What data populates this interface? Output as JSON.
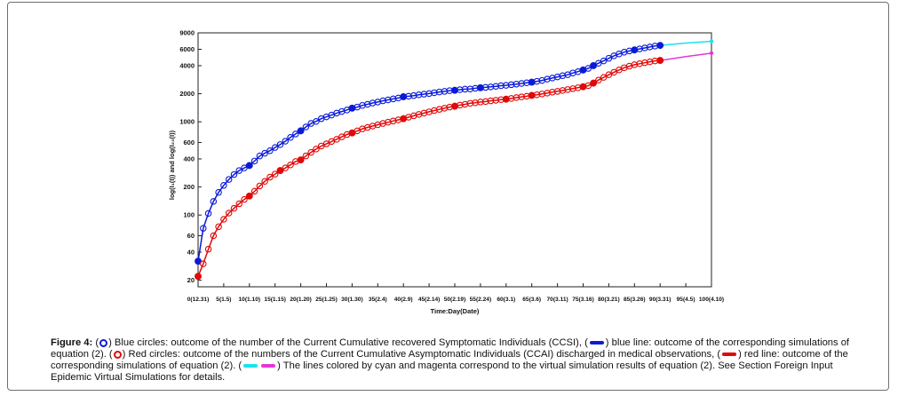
{
  "chart_data": {
    "type": "line",
    "xlabel": "Time:Day(Date)",
    "ylabel": "log(I₁(I)) and log(I₂₃(I))",
    "xlim": [
      0,
      100
    ],
    "ylim": [
      17,
      9000
    ],
    "yscale": "log",
    "grid": false,
    "legend": "none",
    "x_ticks": [
      0,
      5,
      10,
      15,
      20,
      25,
      30,
      35,
      40,
      45,
      50,
      55,
      60,
      65,
      70,
      75,
      80,
      85,
      90,
      95,
      100
    ],
    "x_tick_labels": [
      "0(12.31)",
      "5(1.5)",
      "10(1.10)",
      "15(1.15)",
      "20(1.20)",
      "25(1.25)",
      "30(1.30)",
      "35(2.4)",
      "40(2.9)",
      "45(2.14)",
      "50(2.19)",
      "55(2.24)",
      "60(3.1)",
      "65(3.6)",
      "70(3.11)",
      "75(3.16)",
      "80(3.21)",
      "85(3.26)",
      "90(3.31)",
      "95(4.5)",
      "100(4.10)"
    ],
    "y_ticks": [
      20,
      40,
      60,
      100,
      200,
      400,
      600,
      1000,
      2000,
      4000,
      6000,
      9000
    ],
    "y_tick_labels": [
      "20",
      "40",
      "60",
      "100",
      "200",
      "400",
      "600",
      "1000",
      "2000",
      "4000",
      "6000",
      "9000"
    ],
    "series": [
      {
        "color": "#0a1ad8",
        "marker": "circle",
        "x": [
          0,
          1,
          2,
          3,
          4,
          5,
          6,
          7,
          8,
          9,
          10,
          11,
          12,
          13,
          14,
          15,
          16,
          17,
          18,
          19,
          20,
          21,
          22,
          23,
          24,
          25,
          26,
          27,
          28,
          29,
          30,
          31,
          32,
          33,
          34,
          35,
          36,
          37,
          38,
          39,
          40,
          41,
          42,
          43,
          44,
          45,
          46,
          47,
          48,
          49,
          50,
          51,
          52,
          53,
          54,
          55,
          56,
          57,
          58,
          59,
          60,
          61,
          62,
          63,
          64,
          65,
          66,
          67,
          68,
          69,
          70,
          71,
          72,
          73,
          74,
          75,
          76,
          77,
          78,
          79,
          80,
          81,
          82,
          83,
          84,
          85,
          86,
          87,
          88,
          89,
          90
        ],
        "y": [
          32,
          72,
          104,
          140,
          175,
          208,
          241,
          272,
          300,
          320,
          340,
          380,
          430,
          460,
          490,
          530,
          570,
          620,
          680,
          740,
          800,
          880,
          960,
          1010,
          1080,
          1130,
          1180,
          1240,
          1290,
          1340,
          1400,
          1440,
          1500,
          1540,
          1590,
          1630,
          1680,
          1720,
          1760,
          1800,
          1860,
          1880,
          1910,
          1950,
          1980,
          2010,
          2050,
          2090,
          2120,
          2160,
          2180,
          2210,
          2240,
          2250,
          2290,
          2320,
          2340,
          2370,
          2400,
          2440,
          2460,
          2500,
          2540,
          2580,
          2620,
          2660,
          2720,
          2780,
          2870,
          2950,
          3030,
          3120,
          3200,
          3340,
          3450,
          3600,
          3740,
          4000,
          4250,
          4500,
          4800,
          5100,
          5350,
          5580,
          5750,
          5900,
          6050,
          6200,
          6350,
          6500,
          6600
        ],
        "filled_x": [
          0,
          10,
          20,
          30,
          40,
          50,
          55,
          65,
          75,
          77,
          85,
          90
        ]
      },
      {
        "color": "#e00808",
        "marker": "circle",
        "x": [
          0,
          1,
          2,
          3,
          4,
          5,
          6,
          7,
          8,
          9,
          10,
          11,
          12,
          13,
          14,
          15,
          16,
          17,
          18,
          19,
          20,
          21,
          22,
          23,
          24,
          25,
          26,
          27,
          28,
          29,
          30,
          31,
          32,
          33,
          34,
          35,
          36,
          37,
          38,
          39,
          40,
          41,
          42,
          43,
          44,
          45,
          46,
          47,
          48,
          49,
          50,
          51,
          52,
          53,
          54,
          55,
          56,
          57,
          58,
          59,
          60,
          61,
          62,
          63,
          64,
          65,
          66,
          67,
          68,
          69,
          70,
          71,
          72,
          73,
          74,
          75,
          76,
          77,
          78,
          79,
          80,
          81,
          82,
          83,
          84,
          85,
          86,
          87,
          88,
          89,
          90
        ],
        "y": [
          22,
          30,
          43,
          60,
          75,
          90,
          105,
          118,
          132,
          147,
          160,
          180,
          205,
          230,
          255,
          275,
          300,
          320,
          345,
          375,
          390,
          430,
          470,
          510,
          550,
          580,
          615,
          650,
          690,
          730,
          760,
          800,
          840,
          870,
          900,
          930,
          960,
          990,
          1020,
          1050,
          1080,
          1120,
          1160,
          1200,
          1240,
          1280,
          1320,
          1360,
          1400,
          1440,
          1470,
          1510,
          1540,
          1580,
          1600,
          1630,
          1650,
          1680,
          1700,
          1730,
          1750,
          1780,
          1820,
          1850,
          1880,
          1920,
          1950,
          1990,
          2030,
          2080,
          2120,
          2170,
          2220,
          2270,
          2320,
          2380,
          2440,
          2600,
          2800,
          3000,
          3200,
          3400,
          3600,
          3800,
          3950,
          4100,
          4200,
          4300,
          4400,
          4500,
          4550
        ],
        "filled_x": [
          0,
          10,
          16,
          20,
          30,
          40,
          50,
          60,
          65,
          75,
          77,
          90
        ]
      },
      {
        "color": "#18e3ee",
        "marker": "none",
        "x": [
          90,
          95,
          100
        ],
        "y": [
          6600,
          7000,
          7300
        ]
      },
      {
        "color": "#e636d6",
        "marker": "none",
        "x": [
          90,
          95,
          100
        ],
        "y": [
          4550,
          5000,
          5450
        ]
      }
    ]
  },
  "caption": {
    "label": "Figure 4:",
    "t1": "(",
    "t2": ") Blue circles: outcome of the number of the Current Cumulative recovered Symptomatic Individuals (CCSI), (",
    "t3": ") blue line: outcome of the corresponding simulations of equation (2). (",
    "t4": ") Red circles: outcome of the numbers of the Current Cumulative Asymptomatic Individuals (CCAI) discharged in medical observations, (",
    "t5": ") red line: outcome of the corresponding simulations of equation (2). (",
    "t6": ") The lines colored by cyan and magenta correspond to the virtual simulation results of equation (2). See Section Foreign Input Epidemic Virtual Simulations for details.",
    "colors": {
      "blue": "#0a1ad8",
      "red": "#e00808",
      "cyan": "#18e3ee",
      "magenta": "#e636d6"
    }
  }
}
